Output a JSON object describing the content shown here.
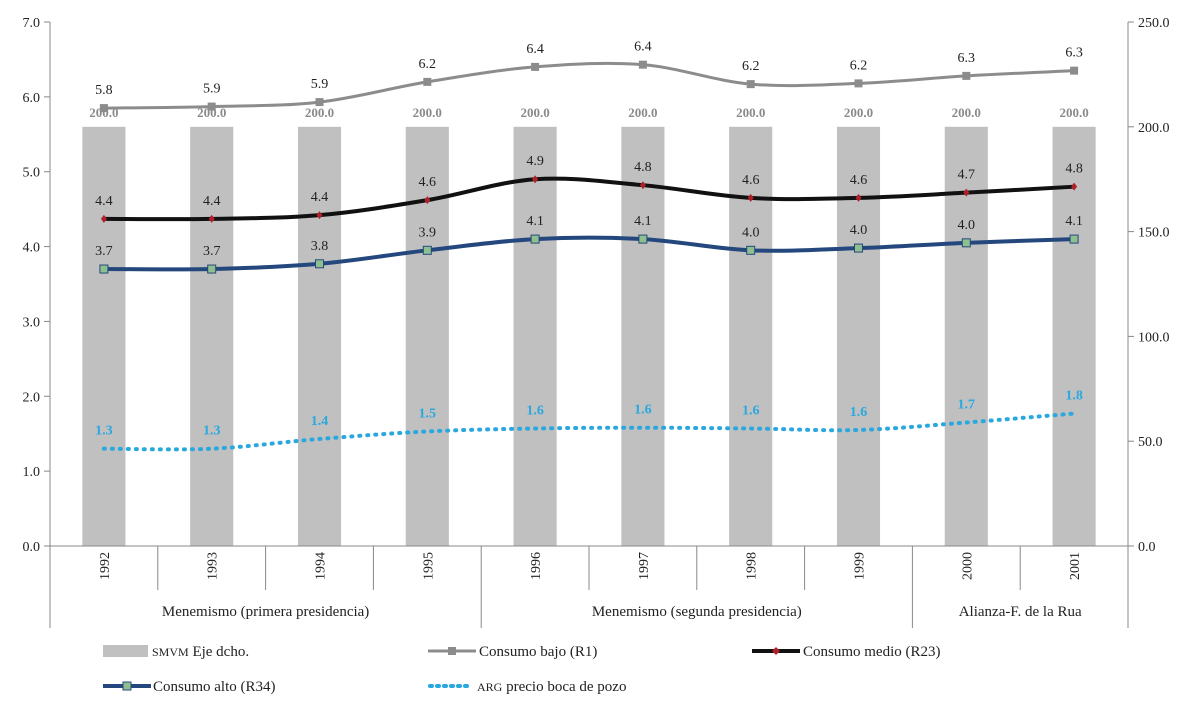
{
  "chart_data": {
    "type": "bar",
    "categories": [
      "1992",
      "1993",
      "1994",
      "1995",
      "1996",
      "1997",
      "1998",
      "1999",
      "2000",
      "2001"
    ],
    "groups": [
      {
        "label": "Menemismo (primera presidencia)",
        "span": 4
      },
      {
        "label": "Menemismo (segunda presidencia)",
        "span": 4
      },
      {
        "label": "Alianza-F. de la Rua",
        "span": 2
      }
    ],
    "y_left": {
      "min": 0,
      "max": 7,
      "ticks": [
        "0.0",
        "1.0",
        "2.0",
        "3.0",
        "4.0",
        "5.0",
        "6.0",
        "7.0"
      ]
    },
    "y_right": {
      "min": 0,
      "max": 250,
      "ticks": [
        "0.0",
        "50.0",
        "100.0",
        "150.0",
        "200.0",
        "250.0"
      ]
    },
    "grid": false,
    "legend_position": "bottom",
    "series": [
      {
        "name": "SMVM Eje dcho.",
        "kind": "bar",
        "axis": "right",
        "color": "#c0c0c0",
        "values": [
          200,
          200,
          200,
          200,
          200,
          200,
          200,
          200,
          200,
          200
        ],
        "labels": [
          "200.0",
          "200.0",
          "200.0",
          "200.0",
          "200.0",
          "200.0",
          "200.0",
          "200.0",
          "200.0",
          "200.0"
        ]
      },
      {
        "name": "Consumo bajo (R1)",
        "kind": "line",
        "axis": "left",
        "color": "#8c8c8c",
        "marker": "square",
        "values": [
          5.85,
          5.87,
          5.93,
          6.2,
          6.4,
          6.43,
          6.17,
          6.18,
          6.28,
          6.35
        ],
        "labels": [
          "5.8",
          "5.9",
          "5.9",
          "6.2",
          "6.4",
          "6.4",
          "6.2",
          "6.2",
          "6.3",
          "6.3"
        ]
      },
      {
        "name": "Consumo medio (R23)",
        "kind": "line",
        "axis": "left",
        "color": "#111111",
        "marker": "diamond",
        "values": [
          4.37,
          4.37,
          4.42,
          4.62,
          4.9,
          4.82,
          4.65,
          4.65,
          4.72,
          4.8
        ],
        "labels": [
          "4.4",
          "4.4",
          "4.4",
          "4.6",
          "4.9",
          "4.8",
          "4.6",
          "4.6",
          "4.7",
          "4.8"
        ]
      },
      {
        "name": "Consumo alto (R34)",
        "kind": "line",
        "axis": "left",
        "color": "#24487d",
        "marker": "x",
        "values": [
          3.7,
          3.7,
          3.77,
          3.95,
          4.1,
          4.1,
          3.95,
          3.98,
          4.05,
          4.1
        ],
        "labels": [
          "3.7",
          "3.7",
          "3.8",
          "3.9",
          "4.1",
          "4.1",
          "4.0",
          "4.0",
          "4.0",
          "4.1"
        ]
      },
      {
        "name": "ARG precio boca de pozo",
        "kind": "dotted",
        "axis": "left",
        "color": "#29a8e0",
        "values": [
          1.3,
          1.3,
          1.43,
          1.53,
          1.57,
          1.58,
          1.57,
          1.55,
          1.65,
          1.77
        ],
        "labels": [
          "1.3",
          "1.3",
          "1.4",
          "1.5",
          "1.6",
          "1.6",
          "1.6",
          "1.6",
          "1.7",
          "1.8"
        ]
      }
    ]
  },
  "legend": {
    "smvm": {
      "prefix": "SMVM",
      "rest": " Eje dcho."
    },
    "bajo": "Consumo bajo (R1)",
    "medio": "Consumo medio (R23)",
    "alto": "Consumo alto (R34)",
    "arg": {
      "prefix": "ARG",
      "rest": " precio boca de pozo"
    }
  }
}
